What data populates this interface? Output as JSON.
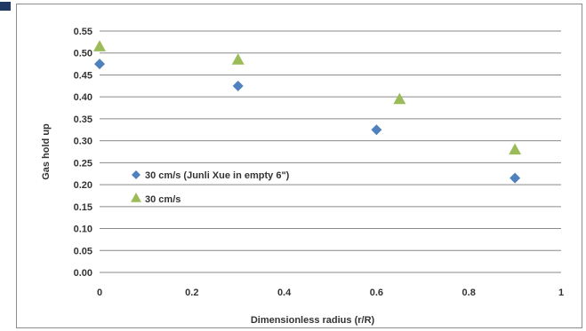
{
  "chart_data": {
    "type": "scatter",
    "title": "",
    "xlabel": "Dimensionless radius (r/R)",
    "ylabel": "Gas hold up",
    "xlim": [
      0,
      1
    ],
    "ylim": [
      0,
      0.55
    ],
    "xticks": [
      0,
      0.2,
      0.4,
      0.6,
      0.8,
      1
    ],
    "xtick_labels": [
      "0",
      "0.2",
      "0.4",
      "0.6",
      "0.8",
      "1"
    ],
    "yticks": [
      0,
      0.05,
      0.1,
      0.15,
      0.2,
      0.25,
      0.3,
      0.35,
      0.4,
      0.45,
      0.5,
      0.55
    ],
    "ytick_labels": [
      "0.00",
      "0.05",
      "0.10",
      "0.15",
      "0.20",
      "0.25",
      "0.30",
      "0.35",
      "0.40",
      "0.45",
      "0.50",
      "0.55"
    ],
    "grid": "horizontal",
    "legend_position": "left-center",
    "series": [
      {
        "name": "30 cm/s (Junli Xue in empty 6\")",
        "marker": "diamond",
        "color": "#4f81bd",
        "x": [
          0,
          0.3,
          0.6,
          0.9
        ],
        "y": [
          0.475,
          0.425,
          0.325,
          0.215
        ]
      },
      {
        "name": "30 cm/s",
        "marker": "triangle",
        "color": "#9bbb59",
        "x": [
          0,
          0.3,
          0.65,
          0.9
        ],
        "y": [
          0.515,
          0.485,
          0.395,
          0.28
        ]
      }
    ]
  }
}
